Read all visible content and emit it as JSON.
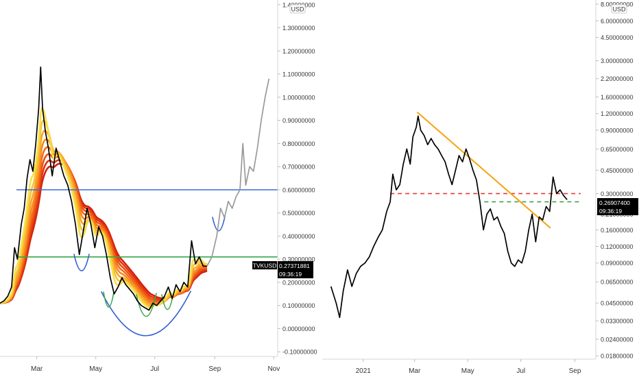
{
  "charts": {
    "left": {
      "currency": "USD",
      "symbol_label": "TVKUSD",
      "price_label": "0.27371881",
      "countdown_label": "09:36:19"
    },
    "right": {
      "currency": "USD",
      "price_label": "0.26907400",
      "countdown_label": "09:36:19"
    }
  },
  "chart_data": [
    {
      "type": "line",
      "panel": "left",
      "scale": "linear",
      "ylim": [
        -0.12,
        1.42
      ],
      "xlim": [
        "2021-01-22",
        "2021-11-05"
      ],
      "y_ticks": [
        "1.40000000",
        "1.30000000",
        "1.20000000",
        "1.10000000",
        "1.00000000",
        "0.90000000",
        "0.80000000",
        "0.70000000",
        "0.60000000",
        "0.50000000",
        "0.40000000",
        "0.30000000",
        "0.20000000",
        "0.10000000",
        "0.00000000",
        "-0.10000000"
      ],
      "x_ticks": [
        "Mar",
        "May",
        "Jul",
        "Sep",
        "Nov"
      ],
      "series": [
        {
          "role": "price",
          "color": "#000000",
          "points": [
            [
              "2021-01-22",
              0.11
            ],
            [
              "2021-01-26",
              0.12
            ],
            [
              "2021-01-30",
              0.14
            ],
            [
              "2021-02-03",
              0.18
            ],
            [
              "2021-02-06",
              0.35
            ],
            [
              "2021-02-09",
              0.3
            ],
            [
              "2021-02-13",
              0.45
            ],
            [
              "2021-02-16",
              0.52
            ],
            [
              "2021-02-19",
              0.65
            ],
            [
              "2021-02-22",
              0.73
            ],
            [
              "2021-02-25",
              0.68
            ],
            [
              "2021-02-28",
              0.8
            ],
            [
              "2021-03-03",
              0.95
            ],
            [
              "2021-03-05",
              1.13
            ],
            [
              "2021-03-07",
              0.95
            ],
            [
              "2021-03-10",
              0.85
            ],
            [
              "2021-03-13",
              0.78
            ],
            [
              "2021-03-17",
              0.66
            ],
            [
              "2021-03-21",
              0.78
            ],
            [
              "2021-03-25",
              0.72
            ],
            [
              "2021-03-29",
              0.66
            ],
            [
              "2021-04-02",
              0.62
            ],
            [
              "2021-04-06",
              0.55
            ],
            [
              "2021-04-10",
              0.45
            ],
            [
              "2021-04-14",
              0.32
            ],
            [
              "2021-04-18",
              0.42
            ],
            [
              "2021-04-22",
              0.52
            ],
            [
              "2021-04-26",
              0.45
            ],
            [
              "2021-04-30",
              0.35
            ],
            [
              "2021-05-04",
              0.44
            ],
            [
              "2021-05-08",
              0.4
            ],
            [
              "2021-05-12",
              0.32
            ],
            [
              "2021-05-16",
              0.22
            ],
            [
              "2021-05-20",
              0.15
            ],
            [
              "2021-05-24",
              0.18
            ],
            [
              "2021-05-28",
              0.22
            ],
            [
              "2021-06-01",
              0.19
            ],
            [
              "2021-06-05",
              0.17
            ],
            [
              "2021-06-09",
              0.15
            ],
            [
              "2021-06-13",
              0.12
            ],
            [
              "2021-06-17",
              0.1
            ],
            [
              "2021-06-21",
              0.09
            ],
            [
              "2021-06-25",
              0.08
            ],
            [
              "2021-06-29",
              0.11
            ],
            [
              "2021-07-03",
              0.1
            ],
            [
              "2021-07-07",
              0.12
            ],
            [
              "2021-07-11",
              0.14
            ],
            [
              "2021-07-15",
              0.18
            ],
            [
              "2021-07-19",
              0.13
            ],
            [
              "2021-07-23",
              0.19
            ],
            [
              "2021-07-27",
              0.16
            ],
            [
              "2021-07-31",
              0.2
            ],
            [
              "2021-08-04",
              0.18
            ],
            [
              "2021-08-08",
              0.38
            ],
            [
              "2021-08-12",
              0.28
            ],
            [
              "2021-08-16",
              0.31
            ],
            [
              "2021-08-20",
              0.27
            ],
            [
              "2021-08-24",
              0.27
            ]
          ]
        },
        {
          "role": "projection",
          "color": "#999999",
          "points": [
            [
              "2021-08-24",
              0.27
            ],
            [
              "2021-08-29",
              0.31
            ],
            [
              "2021-09-03",
              0.4
            ],
            [
              "2021-09-07",
              0.52
            ],
            [
              "2021-09-11",
              0.48
            ],
            [
              "2021-09-15",
              0.55
            ],
            [
              "2021-09-19",
              0.52
            ],
            [
              "2021-09-23",
              0.57
            ],
            [
              "2021-09-27",
              0.6
            ],
            [
              "2021-09-30",
              0.8
            ],
            [
              "2021-10-03",
              0.62
            ],
            [
              "2021-10-07",
              0.7
            ],
            [
              "2021-10-11",
              0.68
            ],
            [
              "2021-10-15",
              0.78
            ],
            [
              "2021-10-19",
              0.9
            ],
            [
              "2021-10-23",
              1.0
            ],
            [
              "2021-10-27",
              1.08
            ]
          ]
        }
      ],
      "ribbon": {
        "count": 8,
        "colors": [
          "#f5e04a",
          "#f7c238",
          "#f8a52a",
          "#f7881f",
          "#f26b16",
          "#ea4f12",
          "#e0340f",
          "#d41f0e"
        ]
      },
      "horizontal_lines": [
        {
          "y": 0.6,
          "color": "#3a6ed8"
        },
        {
          "y": 0.31,
          "color": "#35a849"
        }
      ]
    },
    {
      "type": "line",
      "panel": "right",
      "scale": "log",
      "ylim": [
        0.017,
        8.6
      ],
      "xlim": [
        "2020-11-15",
        "2021-09-25"
      ],
      "y_ticks": [
        "8.00000000",
        "6.00000000",
        "4.50000000",
        "3.00000000",
        "2.20000000",
        "1.60000000",
        "1.20000000",
        "0.90000000",
        "0.65000000",
        "0.45000000",
        "0.30000000",
        "0.21000000",
        "0.16000000",
        "0.12000000",
        "0.09000000",
        "0.06500000",
        "0.04500000",
        "0.03300000",
        "0.02400000",
        "0.01800000"
      ],
      "x_ticks": [
        "2021",
        "Mar",
        "May",
        "Jul",
        "Sep"
      ],
      "series": [
        {
          "role": "price",
          "color": "#000000",
          "points": [
            [
              "2020-11-25",
              0.06
            ],
            [
              "2020-12-01",
              0.045
            ],
            [
              "2020-12-05",
              0.035
            ],
            [
              "2020-12-09",
              0.055
            ],
            [
              "2020-12-14",
              0.08
            ],
            [
              "2020-12-19",
              0.06
            ],
            [
              "2020-12-24",
              0.075
            ],
            [
              "2020-12-29",
              0.085
            ],
            [
              "2021-01-03",
              0.09
            ],
            [
              "2021-01-08",
              0.1
            ],
            [
              "2021-01-13",
              0.12
            ],
            [
              "2021-01-18",
              0.14
            ],
            [
              "2021-01-23",
              0.16
            ],
            [
              "2021-01-28",
              0.22
            ],
            [
              "2021-02-01",
              0.26
            ],
            [
              "2021-02-04",
              0.42
            ],
            [
              "2021-02-08",
              0.32
            ],
            [
              "2021-02-12",
              0.35
            ],
            [
              "2021-02-16",
              0.5
            ],
            [
              "2021-02-20",
              0.65
            ],
            [
              "2021-02-24",
              0.5
            ],
            [
              "2021-02-27",
              0.8
            ],
            [
              "2021-03-03",
              0.95
            ],
            [
              "2021-03-05",
              1.15
            ],
            [
              "2021-03-08",
              0.9
            ],
            [
              "2021-03-12",
              0.82
            ],
            [
              "2021-03-16",
              0.7
            ],
            [
              "2021-03-20",
              0.78
            ],
            [
              "2021-03-24",
              0.7
            ],
            [
              "2021-03-28",
              0.65
            ],
            [
              "2021-04-01",
              0.58
            ],
            [
              "2021-04-05",
              0.52
            ],
            [
              "2021-04-09",
              0.42
            ],
            [
              "2021-04-13",
              0.35
            ],
            [
              "2021-04-17",
              0.45
            ],
            [
              "2021-04-21",
              0.58
            ],
            [
              "2021-04-25",
              0.52
            ],
            [
              "2021-04-29",
              0.65
            ],
            [
              "2021-05-03",
              0.55
            ],
            [
              "2021-05-07",
              0.45
            ],
            [
              "2021-05-11",
              0.38
            ],
            [
              "2021-05-15",
              0.26
            ],
            [
              "2021-05-19",
              0.16
            ],
            [
              "2021-05-23",
              0.21
            ],
            [
              "2021-05-27",
              0.23
            ],
            [
              "2021-05-31",
              0.19
            ],
            [
              "2021-06-04",
              0.2
            ],
            [
              "2021-06-08",
              0.17
            ],
            [
              "2021-06-12",
              0.15
            ],
            [
              "2021-06-16",
              0.11
            ],
            [
              "2021-06-20",
              0.09
            ],
            [
              "2021-06-24",
              0.085
            ],
            [
              "2021-06-28",
              0.095
            ],
            [
              "2021-07-02",
              0.09
            ],
            [
              "2021-07-06",
              0.11
            ],
            [
              "2021-07-10",
              0.16
            ],
            [
              "2021-07-14",
              0.21
            ],
            [
              "2021-07-18",
              0.13
            ],
            [
              "2021-07-22",
              0.2
            ],
            [
              "2021-07-26",
              0.19
            ],
            [
              "2021-07-30",
              0.24
            ],
            [
              "2021-08-03",
              0.22
            ],
            [
              "2021-08-07",
              0.4
            ],
            [
              "2021-08-11",
              0.3
            ],
            [
              "2021-08-15",
              0.32
            ],
            [
              "2021-08-19",
              0.29
            ],
            [
              "2021-08-23",
              0.27
            ]
          ]
        }
      ],
      "trendline": {
        "color": "#f5a30f",
        "from": [
          "2021-03-04",
          1.23
        ],
        "to": [
          "2021-08-04",
          0.165
        ]
      },
      "horizontal_lines": [
        {
          "y": 0.3,
          "color": "#e53935",
          "style": "dashed",
          "from": "2021-02-01"
        },
        {
          "y": 0.26,
          "color": "#43a047",
          "style": "dashed",
          "from": "2021-05-20"
        }
      ]
    }
  ]
}
